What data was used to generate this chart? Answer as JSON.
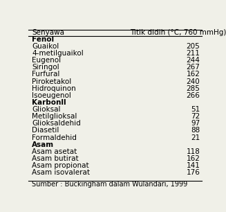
{
  "header_col1": "Senyawa",
  "header_col2": "Titik didih (°C, 760 mmHg)",
  "rows": [
    {
      "name": "Fenol",
      "value": "",
      "bold": true
    },
    {
      "name": "Guaikol",
      "value": "205",
      "bold": false
    },
    {
      "name": "4-metilguaikol",
      "value": "211",
      "bold": false
    },
    {
      "name": "Eugenol",
      "value": "244",
      "bold": false
    },
    {
      "name": "Siringol",
      "value": "267",
      "bold": false
    },
    {
      "name": "Furfural",
      "value": "162",
      "bold": false
    },
    {
      "name": "Piroketakol",
      "value": "240",
      "bold": false
    },
    {
      "name": "Hidroquinon",
      "value": "285",
      "bold": false
    },
    {
      "name": "Isoeugenol",
      "value": "266",
      "bold": false
    },
    {
      "name": "Karbonll",
      "value": "",
      "bold": true
    },
    {
      "name": "Glioksal",
      "value": "51",
      "bold": false
    },
    {
      "name": "Metilglioksal",
      "value": "72",
      "bold": false
    },
    {
      "name": "Glioksaldehid",
      "value": "97",
      "bold": false
    },
    {
      "name": "Diasetil",
      "value": "88",
      "bold": false
    },
    {
      "name": "Formaldehid",
      "value": "21",
      "bold": false
    },
    {
      "name": "Asam",
      "value": "",
      "bold": true
    },
    {
      "name": "Asam asetat",
      "value": "118",
      "bold": false
    },
    {
      "name": "Asam butirat",
      "value": "162",
      "bold": false
    },
    {
      "name": "Asam propionat",
      "value": "141",
      "bold": false
    },
    {
      "name": "Asam isovalerat",
      "value": "176",
      "bold": false
    }
  ],
  "footer": "Sumber : Buckingham dalam Wulandari, 1999",
  "bg_color": "#f0f0e8",
  "text_color": "#000000",
  "font_size": 7.5,
  "header_font_size": 7.5
}
